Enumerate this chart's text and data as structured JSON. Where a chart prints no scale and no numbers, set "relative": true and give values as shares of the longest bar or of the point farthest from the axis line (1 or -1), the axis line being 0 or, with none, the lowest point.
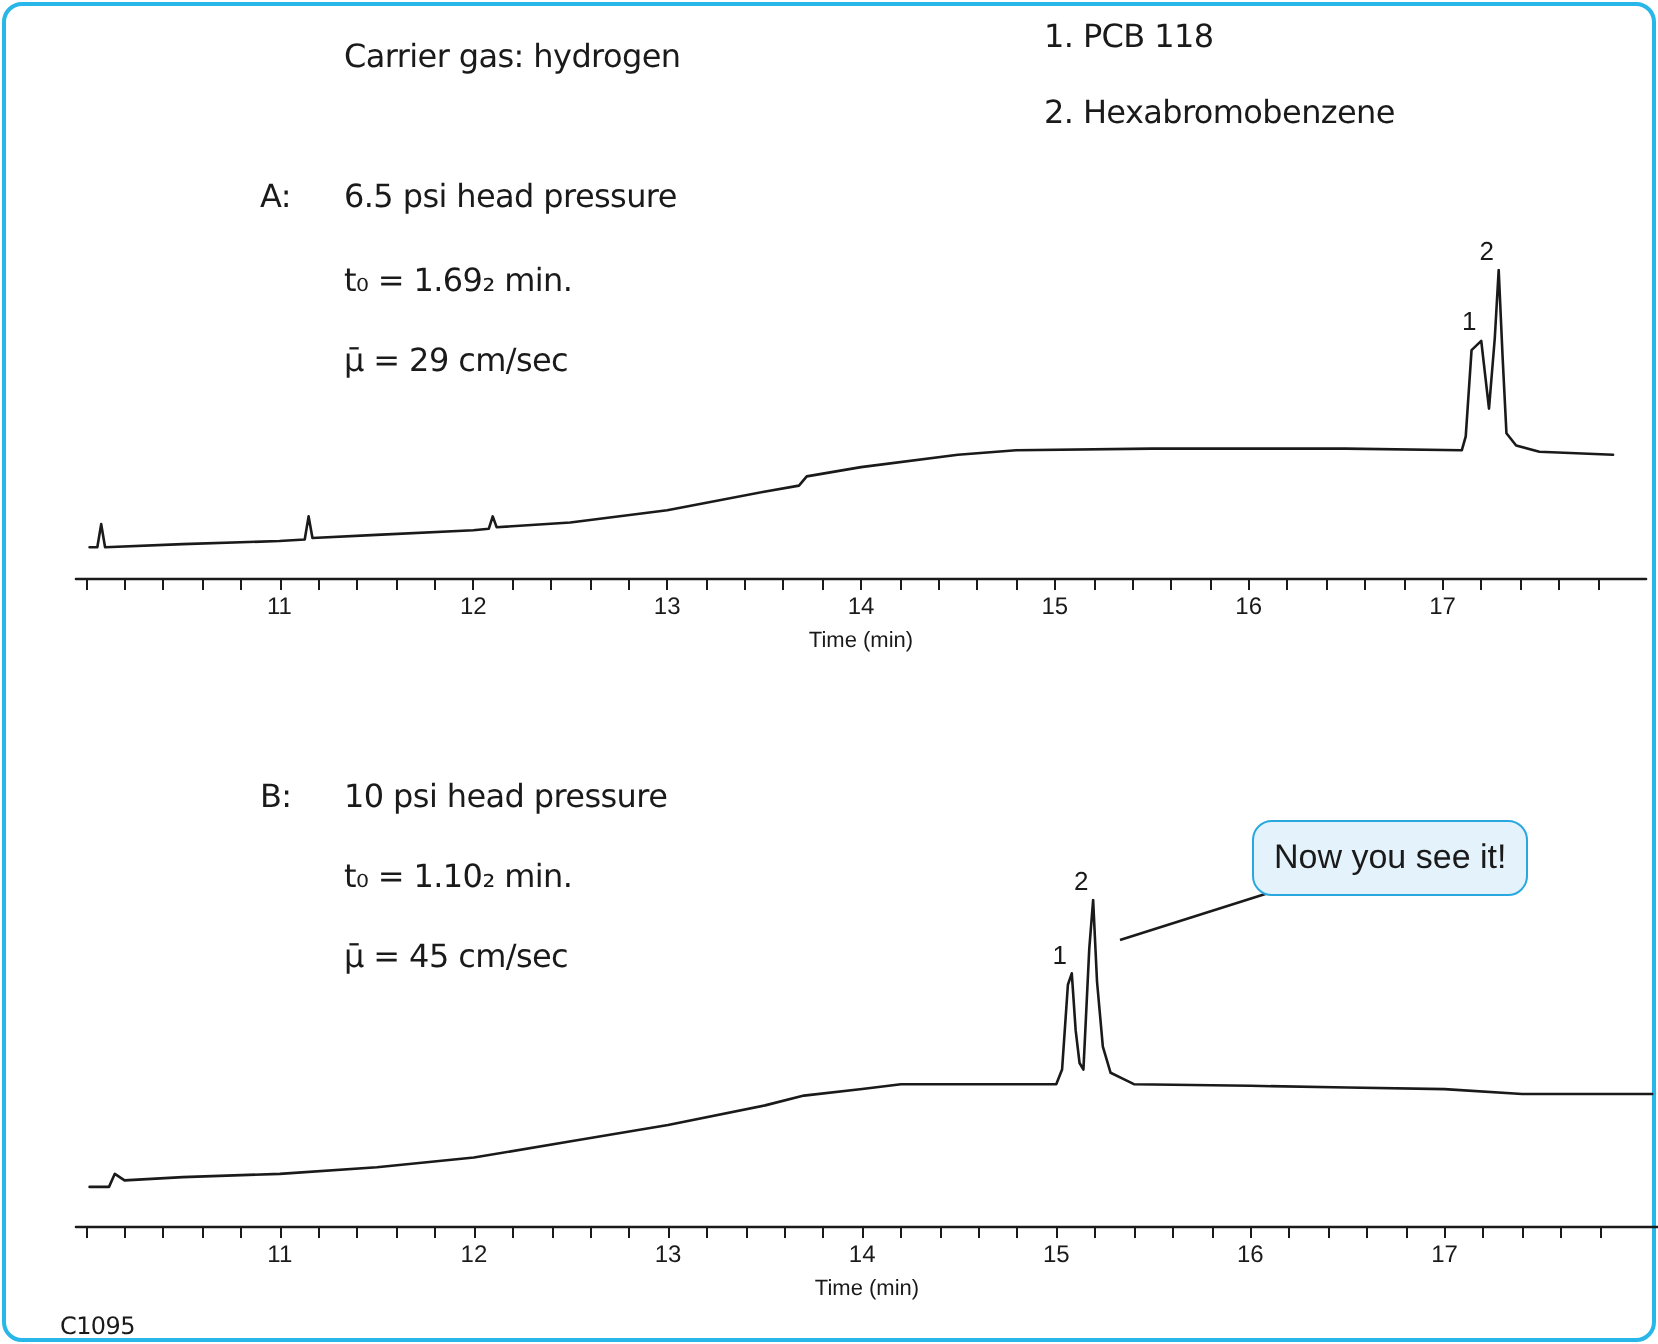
{
  "chart_data": [
    {
      "type": "line",
      "relative": true,
      "xlabel": "Time (min)",
      "xlim": [
        9.95,
        18.05
      ],
      "xticks": [
        {
          "value": 10,
          "label": null
        },
        {
          "value": 10.2,
          "label": null
        },
        {
          "value": 10.4,
          "label": null
        },
        {
          "value": 10.6,
          "label": null
        },
        {
          "value": 10.8,
          "label": null
        },
        11,
        {
          "value": 11.2,
          "label": null
        },
        {
          "value": 11.4,
          "label": null
        },
        {
          "value": 11.6,
          "label": null
        },
        {
          "value": 11.8,
          "label": null
        },
        12,
        {
          "value": 12.2,
          "label": null
        },
        {
          "value": 12.4,
          "label": null
        },
        {
          "value": 12.6,
          "label": null
        },
        {
          "value": 12.8,
          "label": null
        },
        13,
        {
          "value": 13.2,
          "label": null
        },
        {
          "value": 13.4,
          "label": null
        },
        {
          "value": 13.6,
          "label": null
        },
        {
          "value": 13.8,
          "label": null
        },
        14,
        {
          "value": 14.2,
          "label": null
        },
        {
          "value": 14.4,
          "label": null
        },
        {
          "value": 14.6,
          "label": null
        },
        {
          "value": 14.8,
          "label": null
        },
        15,
        {
          "value": 15.2,
          "label": null
        },
        {
          "value": 15.4,
          "label": null
        },
        {
          "value": 15.6,
          "label": null
        },
        {
          "value": 15.8,
          "label": null
        },
        16,
        {
          "value": 16.2,
          "label": null
        },
        {
          "value": 16.4,
          "label": null
        },
        {
          "value": 16.6,
          "label": null
        },
        {
          "value": 16.8,
          "label": null
        },
        17,
        {
          "value": 17.2,
          "label": null
        },
        {
          "value": 17.4,
          "label": null
        },
        {
          "value": 17.6,
          "label": null
        },
        {
          "value": 17.8,
          "label": null
        }
      ],
      "x": [
        10.02,
        10.06,
        10.08,
        10.1,
        10.5,
        11.0,
        11.13,
        11.15,
        11.17,
        11.5,
        12.0,
        12.08,
        12.1,
        12.12,
        12.5,
        13.0,
        13.5,
        13.68,
        13.72,
        14.0,
        14.5,
        14.8,
        15.5,
        16.5,
        17.1,
        17.12,
        17.15,
        17.2,
        17.24,
        17.27,
        17.29,
        17.31,
        17.33,
        17.38,
        17.5,
        17.88
      ],
      "series": [
        {
          "color": "#1a1a1a",
          "values": [
            0.1,
            0.1,
            0.175,
            0.1,
            0.11,
            0.12,
            0.125,
            0.2,
            0.13,
            0.14,
            0.155,
            0.16,
            0.2,
            0.165,
            0.18,
            0.22,
            0.28,
            0.3,
            0.33,
            0.36,
            0.4,
            0.415,
            0.42,
            0.42,
            0.415,
            0.46,
            0.74,
            0.77,
            0.55,
            0.78,
            1.0,
            0.72,
            0.47,
            0.43,
            0.41,
            0.4
          ]
        }
      ],
      "marker": "none",
      "line_style": "solid",
      "grid": false,
      "annotations": [
        "Carrier gas: hydrogen",
        "1. PCB 118",
        "2. Hexabromobenzene",
        "A:",
        "6.5 psi head pressure",
        "t₀ = 1.69₂ min.",
        "μ̄ = 29 cm/sec",
        {
          "text": "1",
          "x": 17.2,
          "y": 0.77
        },
        {
          "text": "2",
          "x": 17.29,
          "y": 1.0
        }
      ]
    },
    {
      "type": "line",
      "relative": true,
      "xlabel": "Time (min)",
      "xlim": [
        9.95,
        18.1
      ],
      "xticks": [
        {
          "value": 10,
          "label": null
        },
        {
          "value": 10.2,
          "label": null
        },
        {
          "value": 10.4,
          "label": null
        },
        {
          "value": 10.6,
          "label": null
        },
        {
          "value": 10.8,
          "label": null
        },
        11,
        {
          "value": 11.2,
          "label": null
        },
        {
          "value": 11.4,
          "label": null
        },
        {
          "value": 11.6,
          "label": null
        },
        {
          "value": 11.8,
          "label": null
        },
        12,
        {
          "value": 12.2,
          "label": null
        },
        {
          "value": 12.4,
          "label": null
        },
        {
          "value": 12.6,
          "label": null
        },
        {
          "value": 12.8,
          "label": null
        },
        13,
        {
          "value": 13.2,
          "label": null
        },
        {
          "value": 13.4,
          "label": null
        },
        {
          "value": 13.6,
          "label": null
        },
        {
          "value": 13.8,
          "label": null
        },
        14,
        {
          "value": 14.2,
          "label": null
        },
        {
          "value": 14.4,
          "label": null
        },
        {
          "value": 14.6,
          "label": null
        },
        {
          "value": 14.8,
          "label": null
        },
        15,
        {
          "value": 15.2,
          "label": null
        },
        {
          "value": 15.4,
          "label": null
        },
        {
          "value": 15.6,
          "label": null
        },
        {
          "value": 15.8,
          "label": null
        },
        16,
        {
          "value": 16.2,
          "label": null
        },
        {
          "value": 16.4,
          "label": null
        },
        {
          "value": 16.6,
          "label": null
        },
        {
          "value": 16.8,
          "label": null
        },
        17,
        {
          "value": 17.2,
          "label": null
        },
        {
          "value": 17.4,
          "label": null
        },
        {
          "value": 17.6,
          "label": null
        },
        {
          "value": 17.8,
          "label": null
        }
      ],
      "x": [
        10.02,
        10.12,
        10.15,
        10.2,
        10.5,
        11.0,
        11.5,
        12.0,
        12.5,
        13.0,
        13.5,
        13.7,
        14.0,
        14.2,
        15.0,
        15.03,
        15.06,
        15.08,
        15.1,
        15.12,
        15.14,
        15.17,
        15.19,
        15.21,
        15.24,
        15.28,
        15.35,
        15.4,
        16.0,
        16.5,
        17.0,
        17.4,
        18.07
      ],
      "series": [
        {
          "color": "#1a1a1a",
          "values": [
            0.12,
            0.12,
            0.16,
            0.14,
            0.15,
            0.16,
            0.18,
            0.21,
            0.26,
            0.31,
            0.37,
            0.4,
            0.42,
            0.435,
            0.435,
            0.48,
            0.74,
            0.775,
            0.6,
            0.5,
            0.48,
            0.85,
            1.0,
            0.75,
            0.55,
            0.47,
            0.45,
            0.435,
            0.43,
            0.425,
            0.42,
            0.405,
            0.405
          ]
        }
      ],
      "marker": "none",
      "line_style": "solid",
      "grid": false,
      "annotations": [
        "B:",
        "10 psi head pressure",
        "t₀ = 1.10₂ min.",
        "μ̄ = 45 cm/sec",
        {
          "text": "1",
          "x": 15.08,
          "y": 0.775
        },
        {
          "text": "2",
          "x": 15.19,
          "y": 1.0
        },
        "Now you see it!",
        "C1095"
      ]
    }
  ]
}
